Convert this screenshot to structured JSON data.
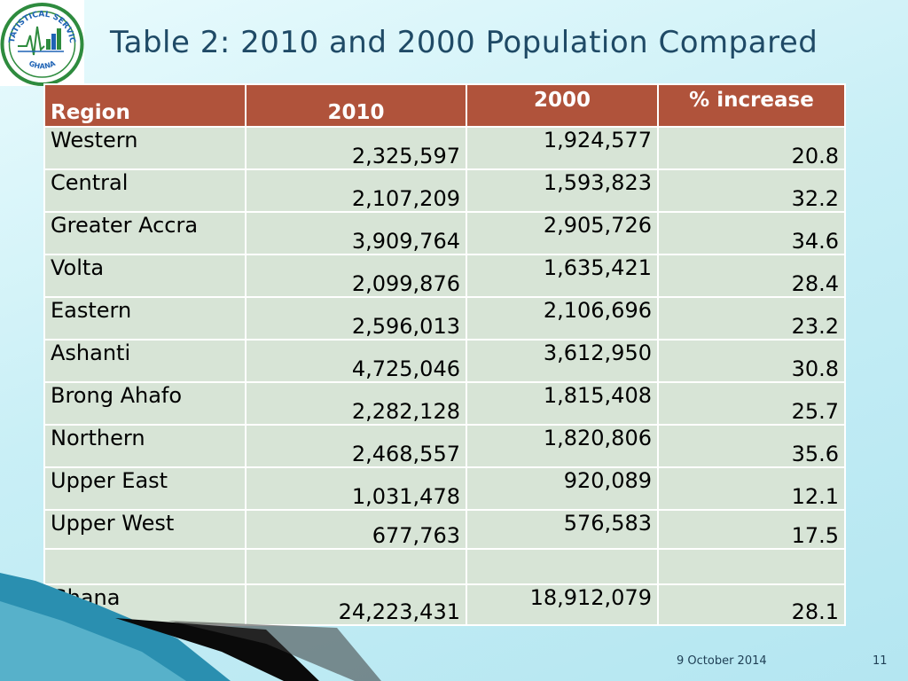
{
  "logo": {
    "arc_top_text": "STATISTICAL SERVICE",
    "arc_bottom_text": "GHANA"
  },
  "title": "Table 2: 2010 and 2000 Population Compared",
  "table": {
    "headers": [
      "Region",
      "2010",
      "2000",
      "% increase"
    ],
    "rows": [
      [
        "Western",
        "2,325,597",
        "1,924,577",
        "20.8"
      ],
      [
        "Central",
        "2,107,209",
        "1,593,823",
        "32.2"
      ],
      [
        "Greater Accra",
        "3,909,764",
        "2,905,726",
        "34.6"
      ],
      [
        "Volta",
        "2,099,876",
        "1,635,421",
        "28.4"
      ],
      [
        "Eastern",
        "2,596,013",
        "2,106,696",
        "23.2"
      ],
      [
        "Ashanti",
        "4,725,046",
        "3,612,950",
        "30.8"
      ],
      [
        "Brong Ahafo",
        "2,282,128",
        "1,815,408",
        "25.7"
      ],
      [
        "Northern",
        "2,468,557",
        "1,820,806",
        "35.6"
      ],
      [
        "Upper East",
        "1,031,478",
        "920,089",
        "12.1"
      ],
      [
        "Upper West",
        "677,763",
        "576,583",
        "17.5"
      ],
      [
        "",
        "",
        "",
        ""
      ],
      [
        "Ghana",
        "24,223,431",
        "18,912,079",
        "28.1"
      ]
    ]
  },
  "footer": {
    "date": "9 October 2014",
    "page": "11"
  },
  "colors": {
    "header_bg": "#b0533b",
    "cell_bg": "#d7e4d6",
    "title": "#1f4a66",
    "logo_green": "#2e8b3e",
    "logo_blue": "#1f63b5"
  }
}
